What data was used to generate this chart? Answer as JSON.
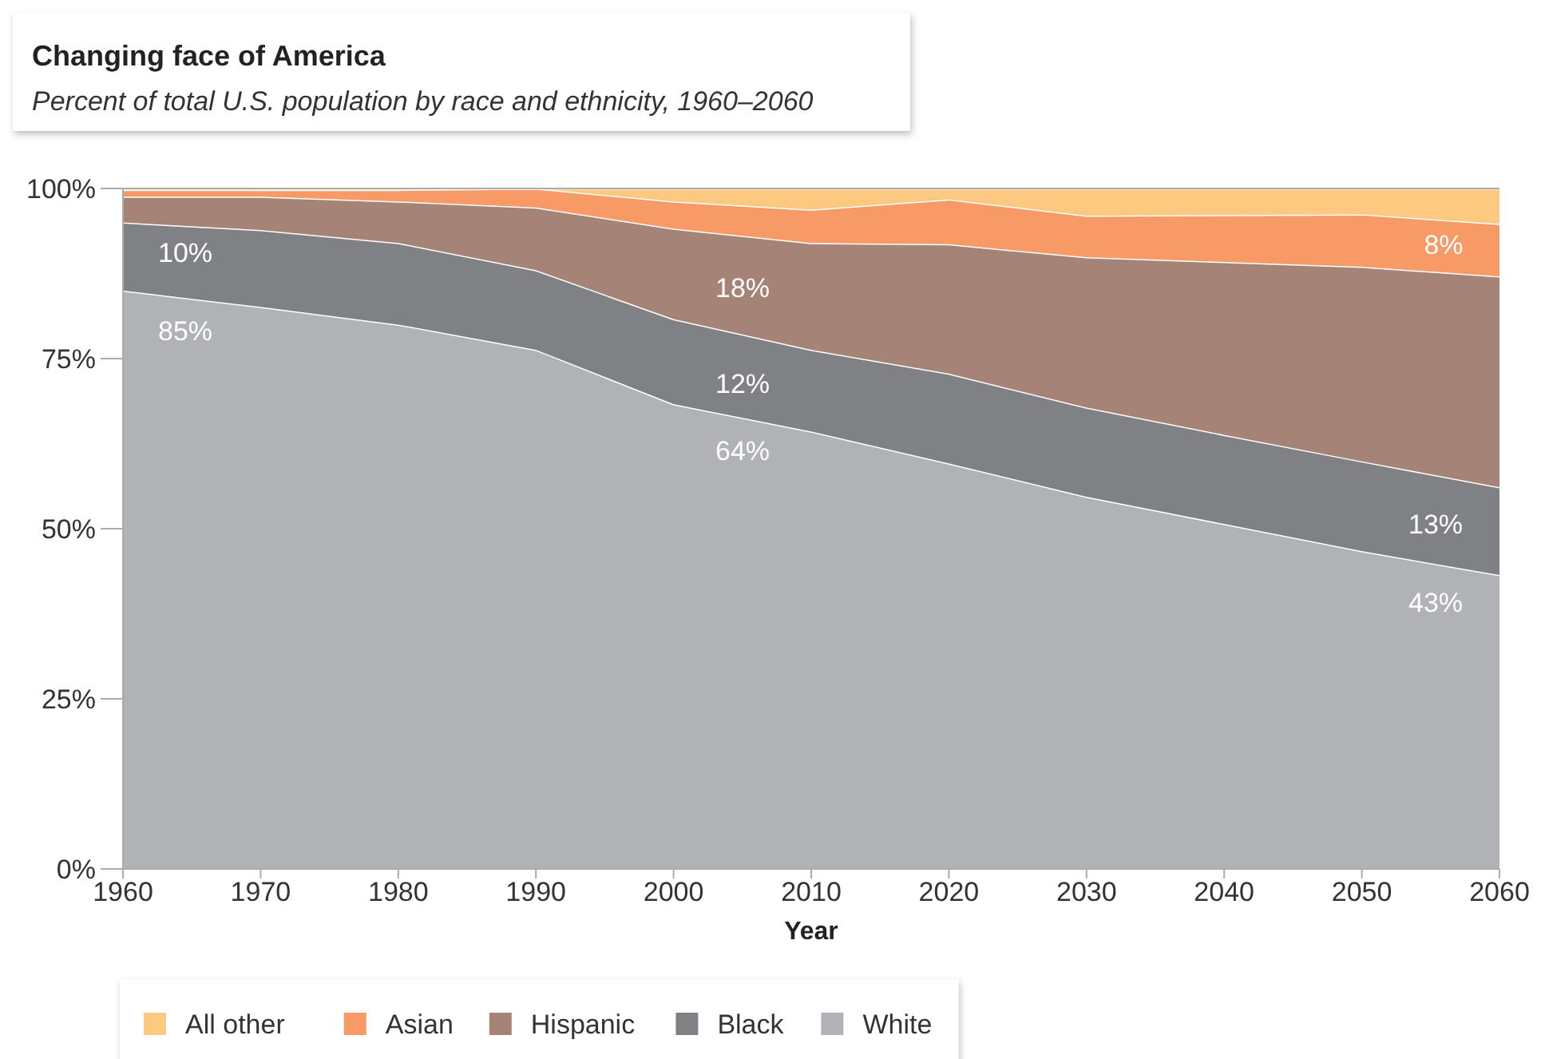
{
  "chart_data": {
    "type": "area",
    "stacked": true,
    "title": "Changing face of America",
    "subtitle": "Percent of total U.S. population by race and ethnicity, 1960–2060",
    "xlabel": "Year",
    "x": [
      1960,
      1970,
      1980,
      1990,
      2000,
      2010,
      2020,
      2030,
      2040,
      2050,
      2060
    ],
    "xlim": [
      1960,
      2060
    ],
    "xticks": [
      1960,
      1970,
      1980,
      1990,
      2000,
      2010,
      2020,
      2030,
      2040,
      2050,
      2060
    ],
    "ylim": [
      0,
      100
    ],
    "yticks": [
      {
        "value": 0,
        "label": "0%"
      },
      {
        "value": 25,
        "label": "25%"
      },
      {
        "value": 50,
        "label": "50%"
      },
      {
        "value": 75,
        "label": "75%"
      },
      {
        "value": 100,
        "label": "100%"
      }
    ],
    "grid": false,
    "legend": "bottom",
    "series": [
      {
        "name": "White",
        "color": "#b1b2b5",
        "values": [
          85,
          82.6,
          80,
          76.3,
          68.3,
          64.3,
          59.6,
          54.7,
          50.7,
          46.7,
          43.2
        ]
      },
      {
        "name": "Black",
        "color": "#808184",
        "values": [
          10,
          11.3,
          12,
          11.7,
          12.5,
          12,
          13.2,
          13.1,
          13.1,
          13.2,
          12.9
        ]
      },
      {
        "name": "Hispanic",
        "color": "#a58377",
        "values": [
          3.8,
          4.9,
          6.1,
          9.2,
          13.3,
          15.7,
          19,
          22.1,
          25.4,
          28.6,
          31
        ]
      },
      {
        "name": "Asian",
        "color": "#f79a65",
        "values": [
          1,
          1,
          1.7,
          2.8,
          4,
          4.9,
          6.6,
          6.1,
          6.9,
          7.7,
          7.7
        ]
      },
      {
        "name": "All other",
        "color": "#fdc87f",
        "values": [
          0.2,
          0.2,
          0.2,
          0,
          1.9,
          3.1,
          1.6,
          4,
          3.9,
          3.8,
          5.2
        ]
      }
    ],
    "annotations": [
      "85%",
      "10%",
      "18%",
      "12%",
      "64%",
      "8%",
      "13%",
      "43%"
    ]
  }
}
